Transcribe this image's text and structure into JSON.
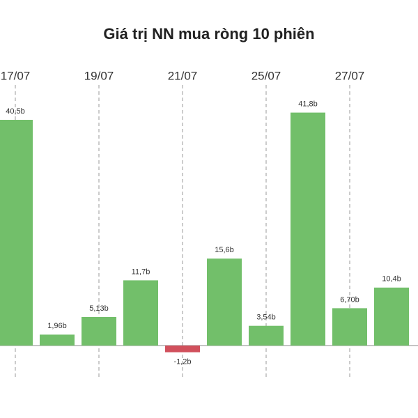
{
  "chart_data": {
    "type": "bar",
    "title": "Giá trị NN mua ròng 10 phiên",
    "categories": [
      "17/07",
      null,
      "19/07",
      null,
      "21/07",
      null,
      "25/07",
      null,
      "27/07",
      null
    ],
    "values": [
      40.5,
      1.96,
      5.13,
      11.7,
      -1.2,
      15.6,
      3.54,
      41.8,
      6.7,
      10.4
    ],
    "value_labels": [
      "40,5b",
      "1,96b",
      "5,13b",
      "11,7b",
      "-1,2b",
      "15,6b",
      "3,54b",
      "41,8b",
      "6,70b",
      "10,4b"
    ],
    "color": "#72bf6a",
    "negative_color": "#d1505c"
  }
}
